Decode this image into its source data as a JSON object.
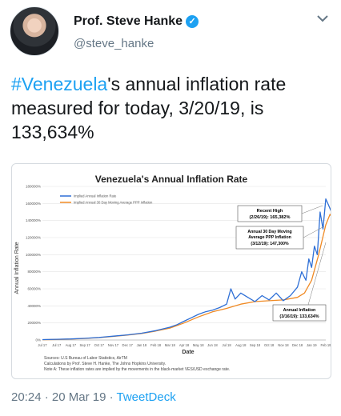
{
  "author": {
    "name": "Prof. Steve Hanke",
    "handle": "@steve_hanke"
  },
  "tweet": {
    "hashtag": "#Venezuela",
    "text": "'s annual inflation rate measured for today, 3/20/19, is 133,634%"
  },
  "meta": {
    "time": "20:24",
    "sep1": "·",
    "date": "20 Mar 19",
    "sep2": "·",
    "source": "TweetDeck"
  },
  "icons": {
    "verified": "verified-badge-icon",
    "menu": "chevron-down-icon"
  },
  "colors": {
    "brand": "#1da1f2",
    "series_actual": "#2e6fd6",
    "series_moving": "#f08a24"
  },
  "chart_data": {
    "type": "line",
    "title": "Venezuela's Annual Inflation Rate",
    "xlabel": "Date",
    "ylabel": "Annual Inflation Rate",
    "ylim": [
      0,
      180000
    ],
    "yticks": [
      "0%",
      "20000%",
      "40000%",
      "60000%",
      "80000%",
      "100000%",
      "120000%",
      "140000%",
      "160000%",
      "180000%"
    ],
    "xticks": [
      "Jul 17",
      "Jul 17",
      "Aug 17",
      "Sep 17",
      "Oct 17",
      "Nov 17",
      "Dec 17",
      "Jan 18",
      "Feb 18",
      "Mar 18",
      "Apr 18",
      "May 18",
      "Jun 18",
      "Jul 18",
      "Aug 18",
      "Sep 18",
      "Oct 18",
      "Nov 18",
      "Dec 18",
      "Jan 19",
      "Feb 19"
    ],
    "grid": true,
    "legend_position": "top-left",
    "series": [
      {
        "name": "Implied Annual Inflation Rate",
        "color": "#2e6fd6",
        "x": [
          0,
          1,
          2,
          3,
          4,
          5,
          6,
          7,
          8,
          9,
          9.5,
          10,
          10.5,
          11,
          11.5,
          12,
          12.5,
          13,
          13.3,
          13.6,
          14,
          14.5,
          15,
          15.5,
          16,
          16.5,
          17,
          17.5,
          18,
          18.3,
          18.6,
          18.8,
          19,
          19.2,
          19.4,
          19.6,
          19.8,
          20,
          20.2,
          20.4,
          20.6
        ],
        "values": [
          500,
          800,
          1200,
          2000,
          3000,
          4500,
          6000,
          8000,
          11000,
          15000,
          18000,
          22000,
          26000,
          30000,
          33000,
          35000,
          38000,
          42000,
          60000,
          48000,
          55000,
          50000,
          45000,
          52000,
          47000,
          55000,
          46000,
          52000,
          62000,
          80000,
          70000,
          95000,
          85000,
          110000,
          100000,
          150000,
          130000,
          165382,
          158000,
          150000,
          133634
        ]
      },
      {
        "name": "Implied Annual 30 Day Moving Average PPP Inflation",
        "color": "#f08a24",
        "x": [
          0,
          1,
          2,
          3,
          4,
          5,
          6,
          7,
          8,
          9,
          10,
          11,
          12,
          13,
          14,
          15,
          16,
          17,
          18,
          18.5,
          19,
          19.5,
          20,
          20.3,
          20.6
        ],
        "values": [
          400,
          700,
          1100,
          1800,
          2800,
          4200,
          5800,
          7600,
          10500,
          14000,
          20000,
          27000,
          33000,
          37000,
          42000,
          45000,
          46000,
          47000,
          50000,
          55000,
          70000,
          100000,
          135000,
          147300,
          140000
        ]
      }
    ],
    "annotations": [
      {
        "label": "Recent High",
        "detail": "(2/26/19): 165,382%"
      },
      {
        "label": "Annual 30 Day Moving Average PPP Inflation",
        "detail": "(3/12/19): 147,300%"
      },
      {
        "label": "Annual Inflation",
        "detail": "(3/16/19): 133,634%"
      }
    ],
    "notes": [
      "Sources: U.S Bureau of Labor Statistics, AirTM",
      "Calculations by Prof. Steve H. Hanke, The Johns Hopkins University.",
      "Note A: These inflation rates are implied by the movements in the black-market VES/USD exchange rate."
    ]
  }
}
